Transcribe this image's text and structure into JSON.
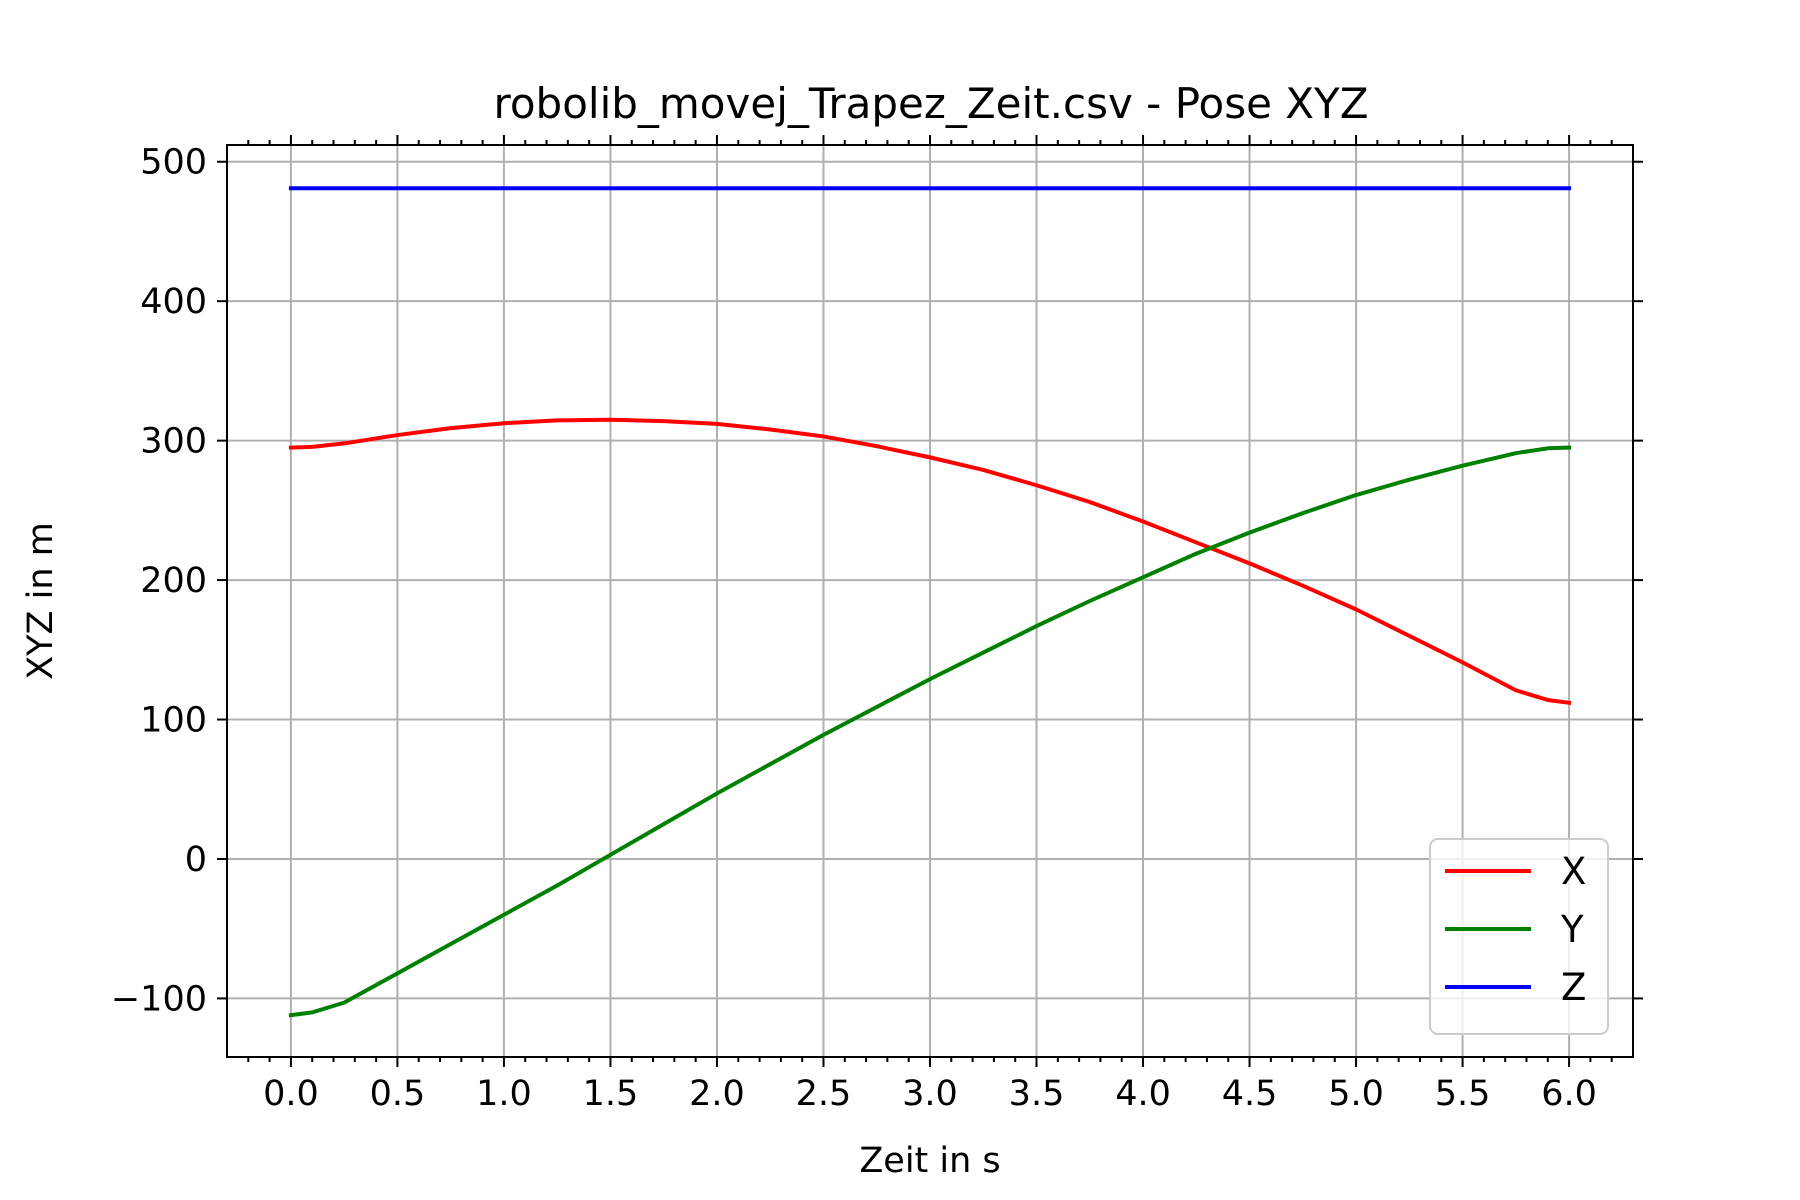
{
  "chart_data": {
    "type": "line",
    "title": "robolib_movej_Trapez_Zeit.csv - Pose XYZ",
    "xlabel": "Zeit in s",
    "ylabel": "XYZ in m",
    "xlim": [
      -0.3,
      6.3
    ],
    "ylim": [
      -142,
      512
    ],
    "grid": true,
    "legend_position": "lower-right",
    "x_ticks": [
      0.0,
      0.5,
      1.0,
      1.5,
      2.0,
      2.5,
      3.0,
      3.5,
      4.0,
      4.5,
      5.0,
      5.5,
      6.0
    ],
    "x_tick_labels": [
      "0.0",
      "0.5",
      "1.0",
      "1.5",
      "2.0",
      "2.5",
      "3.0",
      "3.5",
      "4.0",
      "4.5",
      "5.0",
      "5.5",
      "6.0"
    ],
    "y_ticks": [
      -100,
      0,
      100,
      200,
      300,
      400,
      500
    ],
    "y_tick_labels": [
      "−100",
      "0",
      "100",
      "200",
      "300",
      "400",
      "500"
    ],
    "x": [
      0.0,
      0.1,
      0.25,
      0.5,
      0.75,
      1.0,
      1.25,
      1.5,
      1.75,
      2.0,
      2.25,
      2.5,
      2.75,
      3.0,
      3.25,
      3.5,
      3.75,
      4.0,
      4.25,
      4.5,
      4.75,
      5.0,
      5.25,
      5.5,
      5.75,
      5.9,
      6.0
    ],
    "series": [
      {
        "name": "X",
        "color": "#ff0000",
        "values": [
          295,
          295.5,
          298,
          304,
          309,
          312.5,
          314.5,
          315,
          314,
          312,
          308,
          303,
          296,
          288,
          279,
          268,
          256,
          242,
          227,
          212,
          196,
          179,
          160,
          141,
          121,
          114,
          112
        ]
      },
      {
        "name": "Y",
        "color": "#008000",
        "values": [
          -112,
          -110,
          -103,
          -82,
          -61,
          -40,
          -19,
          3,
          25,
          47,
          68,
          89,
          109,
          129,
          148,
          167,
          185,
          202,
          219,
          234,
          248,
          261,
          272,
          282,
          291,
          294.5,
          295
        ]
      },
      {
        "name": "Z",
        "color": "#0000ff",
        "values": [
          481,
          481,
          481,
          481,
          481,
          481,
          481,
          481,
          481,
          481,
          481,
          481,
          481,
          481,
          481,
          481,
          481,
          481,
          481,
          481,
          481,
          481,
          481,
          481,
          481,
          481,
          481
        ]
      }
    ]
  }
}
